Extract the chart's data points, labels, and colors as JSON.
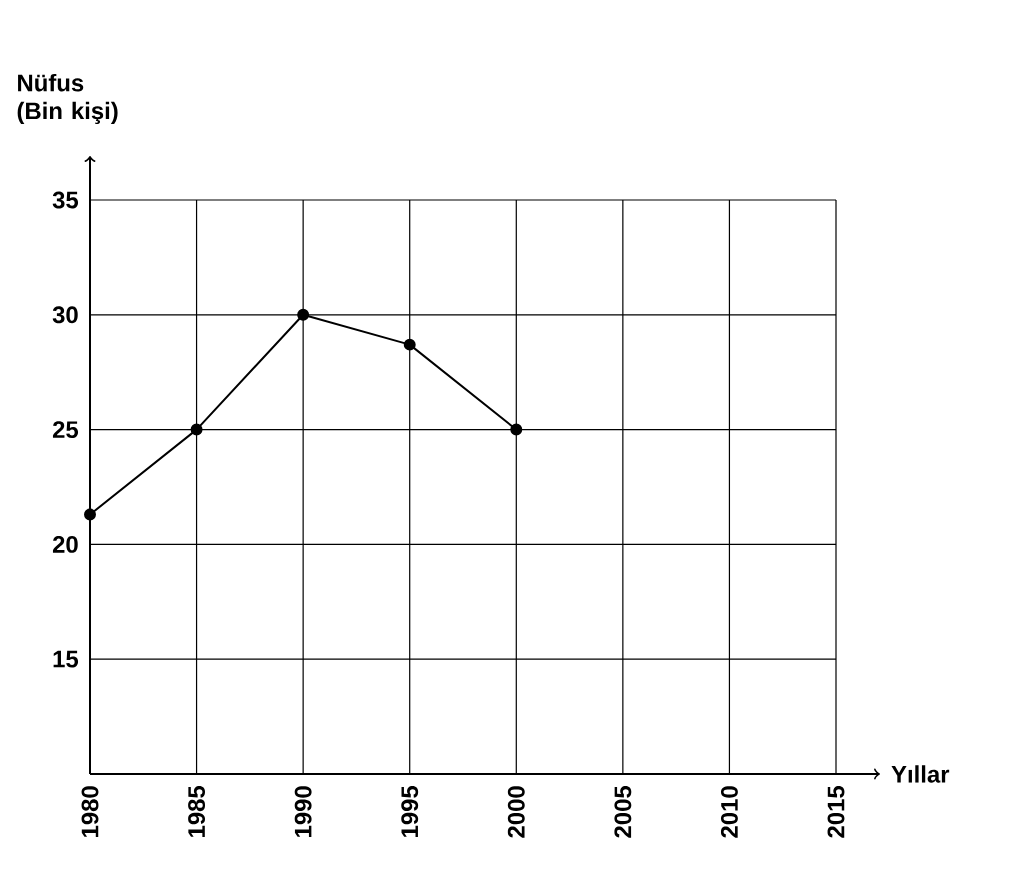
{
  "chart_data": {
    "type": "line",
    "xlabel": "Yıllar",
    "ylabel": "Nüfus (Bin kişi)",
    "x": [
      1980,
      1985,
      1990,
      1995,
      2000
    ],
    "series": [
      {
        "color": "#000000",
        "values": [
          21.3,
          25,
          30,
          28.7,
          25
        ]
      }
    ],
    "xlim": [
      1980,
      2015
    ],
    "ylim": [
      10,
      35
    ],
    "xticks": [
      1980,
      1985,
      1990,
      1995,
      2000,
      2005,
      2010,
      2015
    ],
    "yticks": [
      15,
      20,
      25,
      30,
      35
    ],
    "grid": true,
    "marker": "circle",
    "line_style": "solid"
  }
}
